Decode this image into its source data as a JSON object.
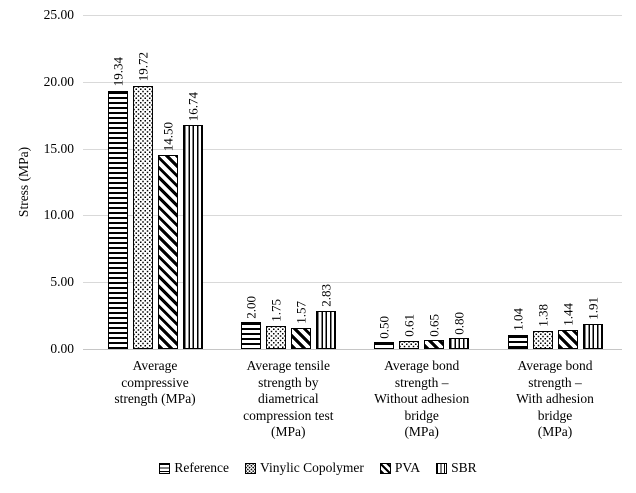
{
  "chart_data": {
    "type": "bar",
    "ylabel": "Stress (MPa)",
    "ylim": [
      0,
      25
    ],
    "ytick_labels": [
      "0.00",
      "5.00",
      "10.00",
      "15.00",
      "20.00",
      "25.00"
    ],
    "grid": true,
    "legend_position": "bottom",
    "categories": [
      "Average\ncompressive\nstrength (MPa)",
      "Average tensile\nstrength by\ndiametrical\ncompression test\n(MPa)",
      "Average bond\nstrength –\nWithout adhesion\nbridge\n(MPa)",
      "Average bond\nstrength –\nWith adhesion\nbridge\n(MPa)"
    ],
    "series": [
      {
        "name": "Reference",
        "pattern": "horizontal-lines",
        "values": [
          19.34,
          2.0,
          0.5,
          1.04
        ],
        "labels": [
          "19.34",
          "2.00",
          "0.50",
          "1.04"
        ]
      },
      {
        "name": "Vinylic Copolymer",
        "pattern": "dots",
        "values": [
          19.72,
          1.75,
          0.61,
          1.38
        ],
        "labels": [
          "19.72",
          "1.75",
          "0.61",
          "1.38"
        ]
      },
      {
        "name": "PVA",
        "pattern": "diagonal-lines",
        "values": [
          14.5,
          1.57,
          0.65,
          1.44
        ],
        "labels": [
          "14.50",
          "1.57",
          "0.65",
          "1.44"
        ]
      },
      {
        "name": "SBR",
        "pattern": "vertical-lines",
        "values": [
          16.74,
          2.83,
          0.8,
          1.91
        ],
        "labels": [
          "16.74",
          "2.83",
          "0.80",
          "1.91"
        ]
      }
    ],
    "colors": {
      "bar_fill": "#ffffff",
      "bar_stroke": "#000000",
      "gridline": "#d9d9d9",
      "axis_line": "#c6c6c6",
      "text": "#000000"
    }
  }
}
